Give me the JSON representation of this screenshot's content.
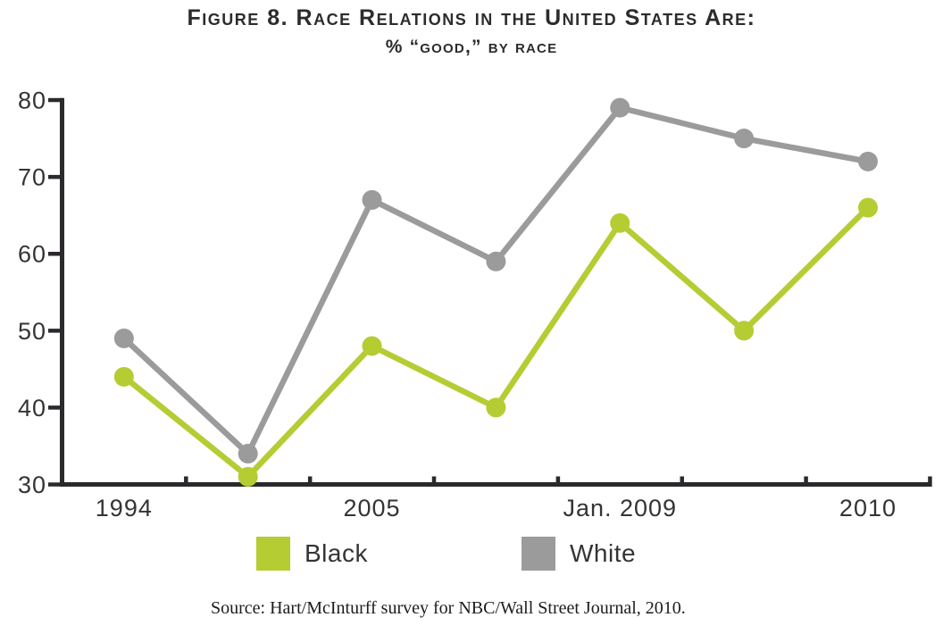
{
  "chart_data": {
    "type": "line",
    "title": "Figure 8. Race Relations in the United States Are:",
    "subtitle": "% “good,” by race",
    "categories": [
      "1994",
      "",
      "2005",
      "",
      "Jan. 2009",
      "",
      "2010"
    ],
    "series": [
      {
        "name": "Black",
        "color": "#b6cc33",
        "values": [
          44,
          31,
          48,
          40,
          64,
          50,
          66
        ]
      },
      {
        "name": "White",
        "color": "#9b9b9b",
        "values": [
          49,
          34,
          67,
          59,
          79,
          75,
          72
        ]
      }
    ],
    "ylim": [
      30,
      80
    ],
    "yticks": [
      30,
      40,
      50,
      60,
      70,
      80
    ],
    "grid": false,
    "legend_position": "bottom",
    "axis_color": "#2b292c",
    "label_color": "#343434",
    "source": "Source: Hart/McInturff survey for NBC/Wall Street Journal, 2010."
  }
}
